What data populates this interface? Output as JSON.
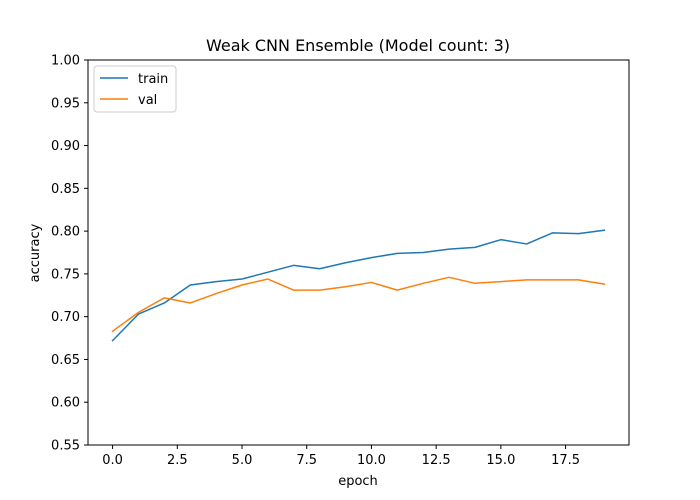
{
  "chart_data": {
    "type": "line",
    "title": "Weak CNN Ensemble (Model count: 3)",
    "xlabel": "epoch",
    "ylabel": "accuracy",
    "xlim": [
      -0.95,
      19.95
    ],
    "ylim": [
      0.55,
      1.0
    ],
    "xticks": [
      0.0,
      2.5,
      5.0,
      7.5,
      10.0,
      12.5,
      15.0,
      17.5
    ],
    "xtick_labels": [
      "0.0",
      "2.5",
      "5.0",
      "7.5",
      "10.0",
      "12.5",
      "15.0",
      "17.5"
    ],
    "yticks": [
      0.55,
      0.6,
      0.65,
      0.7,
      0.75,
      0.8,
      0.85,
      0.9,
      0.95,
      1.0
    ],
    "ytick_labels": [
      "0.55",
      "0.60",
      "0.65",
      "0.70",
      "0.75",
      "0.80",
      "0.85",
      "0.90",
      "0.95",
      "1.00"
    ],
    "grid": false,
    "legend_position": "top-left",
    "x": [
      0,
      1,
      2,
      3,
      4,
      5,
      6,
      7,
      8,
      9,
      10,
      11,
      12,
      13,
      14,
      15,
      16,
      17,
      18,
      19
    ],
    "series": [
      {
        "name": "train",
        "color": "#1f77b4",
        "values": [
          0.672,
          0.703,
          0.716,
          0.737,
          0.741,
          0.744,
          0.752,
          0.76,
          0.756,
          0.763,
          0.769,
          0.774,
          0.775,
          0.779,
          0.781,
          0.79,
          0.785,
          0.798,
          0.797,
          0.801
        ]
      },
      {
        "name": "val",
        "color": "#ff7f0e",
        "values": [
          0.683,
          0.705,
          0.722,
          0.716,
          0.727,
          0.737,
          0.744,
          0.731,
          0.731,
          0.735,
          0.74,
          0.731,
          0.739,
          0.746,
          0.739,
          0.741,
          0.743,
          0.743,
          0.743,
          0.738
        ]
      }
    ]
  }
}
